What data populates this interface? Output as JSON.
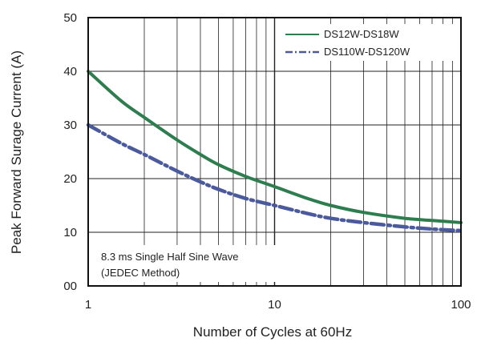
{
  "chart_data": {
    "type": "line",
    "xlabel": "Number of Cycles at 60Hz",
    "ylabel": "Peak Forward Surage Current (A)",
    "x_scale": "log",
    "xlim": [
      1,
      100
    ],
    "ylim": [
      0,
      50
    ],
    "grid": true,
    "legend_position": "top-right",
    "x_ticks": [
      {
        "value": 1,
        "label": "1"
      },
      {
        "value": 10,
        "label": "10"
      },
      {
        "value": 100,
        "label": "100"
      }
    ],
    "y_ticks": [
      {
        "value": 0,
        "label": "00"
      },
      {
        "value": 10,
        "label": "10"
      },
      {
        "value": 20,
        "label": "20"
      },
      {
        "value": 30,
        "label": "30"
      },
      {
        "value": 40,
        "label": "40"
      },
      {
        "value": 50,
        "label": "50"
      }
    ],
    "annotation": [
      "8.3 ms Single Half Sine Wave",
      "(JEDEC Method)"
    ],
    "series": [
      {
        "name": "DS12W-DS18W",
        "color": "#2e7d4f",
        "style": "solid",
        "x": [
          1,
          1.5,
          2,
          3,
          4,
          5,
          7,
          10,
          15,
          20,
          30,
          50,
          70,
          100
        ],
        "y": [
          40,
          34.5,
          31.4,
          27.2,
          24.5,
          22.6,
          20.4,
          18.5,
          16.3,
          15,
          13.7,
          12.6,
          12.2,
          11.8
        ]
      },
      {
        "name": "DS110W-DS120W",
        "color": "#4a5a9c",
        "style": "dash-dot",
        "x": [
          1,
          1.5,
          2,
          3,
          4,
          5,
          7,
          10,
          15,
          20,
          30,
          50,
          70,
          100
        ],
        "y": [
          30,
          26.6,
          24.5,
          21.4,
          19.4,
          18,
          16.3,
          15,
          13.5,
          12.6,
          11.8,
          11,
          10.6,
          10.3
        ]
      }
    ]
  }
}
